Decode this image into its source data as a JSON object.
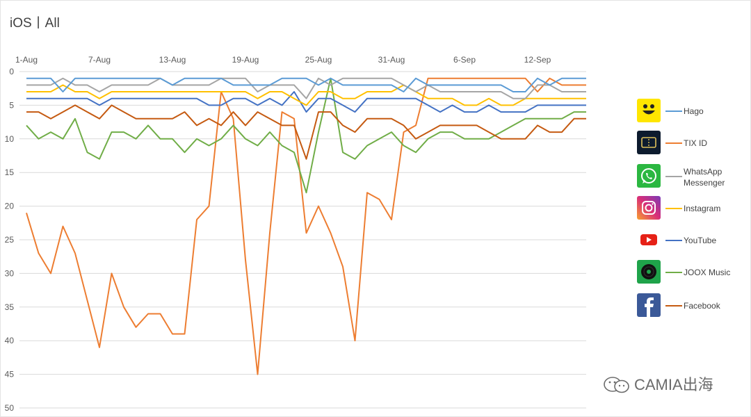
{
  "title": "iOS丨All",
  "watermark": {
    "text": "CAMIA出海",
    "icon": "wechat-icon"
  },
  "chart_data": {
    "type": "line",
    "x_start_date": "2019-08-01",
    "x_tick_labels": [
      "1-Aug",
      "7-Aug",
      "13-Aug",
      "19-Aug",
      "25-Aug",
      "31-Aug",
      "6-Sep",
      "12-Sep"
    ],
    "x": [
      "1-Aug",
      "2-Aug",
      "3-Aug",
      "4-Aug",
      "5-Aug",
      "6-Aug",
      "7-Aug",
      "8-Aug",
      "9-Aug",
      "10-Aug",
      "11-Aug",
      "12-Aug",
      "13-Aug",
      "14-Aug",
      "15-Aug",
      "16-Aug",
      "17-Aug",
      "18-Aug",
      "19-Aug",
      "20-Aug",
      "21-Aug",
      "22-Aug",
      "23-Aug",
      "24-Aug",
      "25-Aug",
      "26-Aug",
      "27-Aug",
      "28-Aug",
      "29-Aug",
      "30-Aug",
      "31-Aug",
      "1-Sep",
      "2-Sep",
      "3-Sep",
      "4-Sep",
      "5-Sep",
      "6-Sep",
      "7-Sep",
      "8-Sep",
      "9-Sep",
      "10-Sep",
      "11-Sep",
      "12-Sep",
      "13-Sep",
      "14-Sep",
      "15-Sep",
      "16-Sep"
    ],
    "y_ticks": [
      0,
      5,
      10,
      15,
      20,
      25,
      30,
      35,
      40,
      45,
      50
    ],
    "ylim": [
      0,
      50
    ],
    "y_reversed": true,
    "grid": "horizontal",
    "legend_position": "right",
    "series": [
      {
        "name": "Hago",
        "color": "#5b9bd5",
        "icon": "hago-icon",
        "values": [
          1,
          1,
          1,
          3,
          1,
          1,
          1,
          1,
          1,
          1,
          1,
          1,
          2,
          1,
          1,
          1,
          1,
          2,
          2,
          2,
          2,
          1,
          1,
          1,
          2,
          1,
          2,
          2,
          2,
          2,
          2,
          3,
          1,
          2,
          2,
          2,
          2,
          2,
          2,
          2,
          3,
          3,
          1,
          2,
          1,
          1,
          1
        ]
      },
      {
        "name": "TIX ID",
        "color": "#ed7d31",
        "icon": "tix-id-icon",
        "values": [
          21,
          27,
          30,
          23,
          27,
          34,
          41,
          30,
          35,
          38,
          36,
          36,
          39,
          39,
          22,
          20,
          3,
          7,
          28,
          45,
          24,
          6,
          7,
          24,
          20,
          24,
          29,
          40,
          18,
          19,
          22,
          9,
          8,
          1,
          1,
          1,
          1,
          1,
          1,
          1,
          1,
          1,
          3,
          1,
          2,
          2,
          2
        ]
      },
      {
        "name": "WhatsApp Messenger",
        "color": "#a5a5a5",
        "icon": "whatsapp-icon",
        "values": [
          2,
          2,
          2,
          1,
          2,
          2,
          3,
          2,
          2,
          2,
          2,
          1,
          2,
          2,
          2,
          2,
          1,
          1,
          1,
          3,
          2,
          2,
          2,
          4,
          1,
          2,
          1,
          1,
          1,
          1,
          1,
          2,
          3,
          2,
          3,
          3,
          3,
          3,
          3,
          3,
          4,
          4,
          2,
          2,
          3,
          3,
          3
        ]
      },
      {
        "name": "Instagram",
        "color": "#ffc000",
        "icon": "instagram-icon",
        "values": [
          3,
          3,
          3,
          2,
          3,
          3,
          4,
          3,
          3,
          3,
          3,
          3,
          3,
          3,
          3,
          3,
          3,
          3,
          3,
          4,
          3,
          3,
          4,
          5,
          3,
          3,
          4,
          4,
          3,
          3,
          3,
          2,
          3,
          4,
          4,
          4,
          5,
          5,
          4,
          5,
          5,
          4,
          4,
          4,
          4,
          4,
          4
        ]
      },
      {
        "name": "YouTube",
        "color": "#4472c4",
        "icon": "youtube-icon",
        "values": [
          4,
          4,
          4,
          4,
          4,
          4,
          5,
          4,
          4,
          4,
          4,
          4,
          4,
          4,
          4,
          5,
          5,
          4,
          4,
          5,
          4,
          5,
          3,
          6,
          4,
          4,
          5,
          6,
          4,
          4,
          4,
          4,
          4,
          5,
          6,
          5,
          6,
          6,
          5,
          6,
          6,
          6,
          5,
          5,
          5,
          5,
          5
        ]
      },
      {
        "name": "JOOX Music",
        "color": "#70ad47",
        "icon": "joox-icon",
        "values": [
          8,
          10,
          9,
          10,
          7,
          12,
          13,
          9,
          9,
          10,
          8,
          10,
          10,
          12,
          10,
          11,
          10,
          8,
          10,
          11,
          9,
          11,
          12,
          18,
          9,
          1,
          12,
          13,
          11,
          10,
          9,
          11,
          12,
          10,
          9,
          9,
          10,
          10,
          10,
          9,
          8,
          7,
          7,
          7,
          7,
          6,
          6
        ]
      },
      {
        "name": "Facebook",
        "color": "#c55a11",
        "icon": "facebook-icon",
        "values": [
          6,
          6,
          7,
          6,
          5,
          6,
          7,
          5,
          6,
          7,
          7,
          7,
          7,
          6,
          8,
          7,
          8,
          6,
          8,
          6,
          7,
          8,
          8,
          13,
          6,
          6,
          8,
          9,
          7,
          7,
          7,
          8,
          10,
          9,
          8,
          8,
          8,
          8,
          9,
          10,
          10,
          10,
          8,
          9,
          9,
          7,
          7
        ]
      }
    ]
  }
}
